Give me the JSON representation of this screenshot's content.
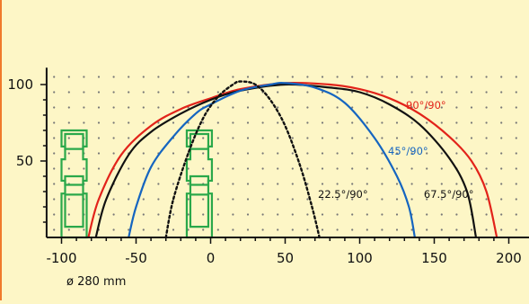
{
  "chart_data": {
    "type": "line",
    "title": "",
    "xlabel": "ø 280 mm",
    "ylabel": "",
    "xlim": [
      -110,
      205
    ],
    "ylim": [
      0,
      105
    ],
    "x_ticks": [
      -100,
      -50,
      0,
      50,
      100,
      150,
      200
    ],
    "y_ticks": [
      50,
      100
    ],
    "grid": "dotted",
    "colors": {
      "background": "#fdf6c6",
      "border": "#f07a2a",
      "red": "#e2231a",
      "blue": "#1565c0",
      "black": "#111111",
      "fixture": "#2aa84a"
    },
    "series": [
      {
        "name": "90°/90°",
        "color": "#e2231a",
        "style": "solid",
        "x": [
          -82,
          -75,
          -60,
          -40,
          -20,
          0,
          20,
          50,
          80,
          100,
          120,
          140,
          160,
          175,
          185,
          192
        ],
        "y": [
          0,
          25,
          54,
          73,
          84,
          91,
          97,
          101,
          100,
          97,
          91,
          81,
          66,
          50,
          30,
          0
        ]
      },
      {
        "name": "67.5°/90°",
        "color": "#111111",
        "style": "solid",
        "x": [
          -77,
          -70,
          -55,
          -40,
          -20,
          0,
          20,
          50,
          80,
          100,
          120,
          140,
          160,
          172,
          178
        ],
        "y": [
          0,
          25,
          54,
          69,
          81,
          90,
          96,
          100,
          98,
          95,
          87,
          74,
          52,
          30,
          0
        ]
      },
      {
        "name": "45°/90°",
        "color": "#1565c0",
        "style": "solid",
        "x": [
          -55,
          -50,
          -40,
          -25,
          -10,
          0,
          20,
          40,
          50,
          70,
          90,
          110,
          125,
          133,
          137
        ],
        "y": [
          0,
          20,
          46,
          66,
          81,
          87,
          96,
          100,
          101,
          98,
          88,
          65,
          40,
          20,
          0
        ]
      },
      {
        "name": "22.5°/90°",
        "color": "#111111",
        "style": "dotted",
        "x": [
          -30,
          -25,
          -15,
          -5,
          5,
          15,
          20,
          30,
          40,
          50,
          60,
          68,
          73
        ],
        "y": [
          0,
          25,
          55,
          78,
          92,
          100,
          102,
          100,
          90,
          73,
          47,
          20,
          0
        ]
      }
    ],
    "annotations": [
      {
        "text": "90°/90°",
        "color": "#e2231a"
      },
      {
        "text": "45°/90°",
        "color": "#1565c0"
      },
      {
        "text": "22.5°/90°",
        "color": "#111111"
      },
      {
        "text": "67.5°/90°",
        "color": "#111111"
      }
    ]
  }
}
